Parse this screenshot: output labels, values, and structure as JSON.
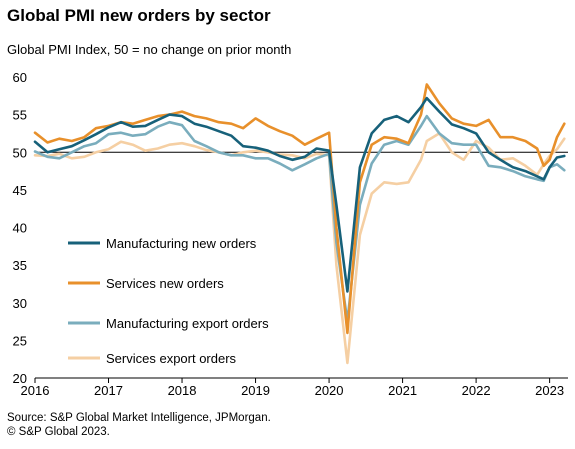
{
  "chart_data": {
    "type": "line",
    "title": "Global PMI new orders by sector",
    "subtitle": "Global PMI Index, 50 = no change on prior month",
    "source_line1": "Source: S&P Global Market Intelligence, JPMorgan.",
    "source_line2": "© S&P Global 2023.",
    "ylim": [
      20,
      60
    ],
    "yticks": [
      20,
      25,
      30,
      35,
      40,
      45,
      50,
      55,
      60
    ],
    "xlim": [
      2016,
      2023.25
    ],
    "xticks": [
      "2016",
      "2017",
      "2018",
      "2019",
      "2020",
      "2021",
      "2022",
      "2023"
    ],
    "reference_line": 50,
    "grid": false,
    "legend": "inside-left-bottom",
    "series": [
      {
        "name": "Manufacturing new orders",
        "color": "#17617a",
        "values": [
          [
            2016.0,
            51.4
          ],
          [
            2016.17,
            50.0
          ],
          [
            2016.33,
            50.4
          ],
          [
            2016.5,
            50.8
          ],
          [
            2016.67,
            51.6
          ],
          [
            2016.83,
            52.4
          ],
          [
            2017.0,
            53.3
          ],
          [
            2017.17,
            54.0
          ],
          [
            2017.33,
            53.4
          ],
          [
            2017.5,
            53.5
          ],
          [
            2017.67,
            54.3
          ],
          [
            2017.83,
            55.0
          ],
          [
            2018.0,
            54.8
          ],
          [
            2018.17,
            53.8
          ],
          [
            2018.33,
            53.4
          ],
          [
            2018.5,
            52.8
          ],
          [
            2018.67,
            52.2
          ],
          [
            2018.83,
            50.8
          ],
          [
            2019.0,
            50.6
          ],
          [
            2019.17,
            50.2
          ],
          [
            2019.33,
            49.5
          ],
          [
            2019.5,
            49.0
          ],
          [
            2019.67,
            49.4
          ],
          [
            2019.83,
            50.5
          ],
          [
            2020.0,
            50.2
          ],
          [
            2020.1,
            43.0
          ],
          [
            2020.25,
            31.5
          ],
          [
            2020.42,
            48.0
          ],
          [
            2020.58,
            52.5
          ],
          [
            2020.75,
            54.3
          ],
          [
            2020.92,
            54.8
          ],
          [
            2021.08,
            54.0
          ],
          [
            2021.25,
            56.0
          ],
          [
            2021.33,
            57.2
          ],
          [
            2021.5,
            55.4
          ],
          [
            2021.67,
            53.7
          ],
          [
            2021.83,
            53.2
          ],
          [
            2022.0,
            52.5
          ],
          [
            2022.17,
            50.0
          ],
          [
            2022.33,
            49.0
          ],
          [
            2022.5,
            48.0
          ],
          [
            2022.67,
            47.5
          ],
          [
            2022.83,
            46.8
          ],
          [
            2022.92,
            46.4
          ],
          [
            2023.0,
            48.0
          ],
          [
            2023.1,
            49.3
          ],
          [
            2023.2,
            49.5
          ]
        ]
      },
      {
        "name": "Services new orders",
        "color": "#e8902b",
        "values": [
          [
            2016.0,
            52.6
          ],
          [
            2016.17,
            51.3
          ],
          [
            2016.33,
            51.8
          ],
          [
            2016.5,
            51.5
          ],
          [
            2016.67,
            52.0
          ],
          [
            2016.83,
            53.2
          ],
          [
            2017.0,
            53.5
          ],
          [
            2017.17,
            54.0
          ],
          [
            2017.33,
            53.8
          ],
          [
            2017.5,
            54.3
          ],
          [
            2017.67,
            54.8
          ],
          [
            2017.83,
            55.0
          ],
          [
            2018.0,
            55.4
          ],
          [
            2018.17,
            54.8
          ],
          [
            2018.33,
            54.5
          ],
          [
            2018.5,
            54.0
          ],
          [
            2018.67,
            53.8
          ],
          [
            2018.83,
            53.2
          ],
          [
            2019.0,
            54.5
          ],
          [
            2019.17,
            53.5
          ],
          [
            2019.33,
            52.8
          ],
          [
            2019.5,
            52.2
          ],
          [
            2019.67,
            51.0
          ],
          [
            2019.83,
            51.8
          ],
          [
            2020.0,
            52.6
          ],
          [
            2020.1,
            40.0
          ],
          [
            2020.25,
            26.0
          ],
          [
            2020.42,
            46.0
          ],
          [
            2020.58,
            51.0
          ],
          [
            2020.75,
            52.0
          ],
          [
            2020.92,
            51.8
          ],
          [
            2021.08,
            51.2
          ],
          [
            2021.25,
            55.0
          ],
          [
            2021.33,
            59.0
          ],
          [
            2021.5,
            56.5
          ],
          [
            2021.67,
            54.5
          ],
          [
            2021.83,
            53.8
          ],
          [
            2022.0,
            53.5
          ],
          [
            2022.17,
            54.3
          ],
          [
            2022.33,
            52.0
          ],
          [
            2022.5,
            52.0
          ],
          [
            2022.67,
            51.5
          ],
          [
            2022.83,
            50.5
          ],
          [
            2022.92,
            48.2
          ],
          [
            2023.0,
            49.0
          ],
          [
            2023.1,
            52.0
          ],
          [
            2023.2,
            53.8
          ]
        ]
      },
      {
        "name": "Manufacturing export orders",
        "color": "#7aadbd",
        "values": [
          [
            2016.0,
            50.1
          ],
          [
            2016.17,
            49.4
          ],
          [
            2016.33,
            49.2
          ],
          [
            2016.5,
            50.0
          ],
          [
            2016.67,
            50.8
          ],
          [
            2016.83,
            51.2
          ],
          [
            2017.0,
            52.4
          ],
          [
            2017.17,
            52.6
          ],
          [
            2017.33,
            52.2
          ],
          [
            2017.5,
            52.4
          ],
          [
            2017.67,
            53.4
          ],
          [
            2017.83,
            54.0
          ],
          [
            2018.0,
            53.6
          ],
          [
            2018.17,
            51.5
          ],
          [
            2018.33,
            50.8
          ],
          [
            2018.5,
            50.0
          ],
          [
            2018.67,
            49.6
          ],
          [
            2018.83,
            49.6
          ],
          [
            2019.0,
            49.2
          ],
          [
            2019.17,
            49.2
          ],
          [
            2019.33,
            48.5
          ],
          [
            2019.5,
            47.6
          ],
          [
            2019.67,
            48.4
          ],
          [
            2019.83,
            49.2
          ],
          [
            2020.0,
            49.8
          ],
          [
            2020.1,
            38.0
          ],
          [
            2020.25,
            27.5
          ],
          [
            2020.42,
            43.0
          ],
          [
            2020.58,
            48.5
          ],
          [
            2020.75,
            51.0
          ],
          [
            2020.92,
            51.5
          ],
          [
            2021.08,
            51.0
          ],
          [
            2021.25,
            53.5
          ],
          [
            2021.33,
            54.8
          ],
          [
            2021.5,
            52.5
          ],
          [
            2021.67,
            51.2
          ],
          [
            2021.83,
            51.0
          ],
          [
            2022.0,
            51.0
          ],
          [
            2022.17,
            48.2
          ],
          [
            2022.33,
            48.0
          ],
          [
            2022.5,
            47.5
          ],
          [
            2022.67,
            46.8
          ],
          [
            2022.83,
            46.4
          ],
          [
            2022.92,
            46.2
          ],
          [
            2023.0,
            48.0
          ],
          [
            2023.1,
            48.4
          ],
          [
            2023.2,
            47.6
          ]
        ]
      },
      {
        "name": "Services export orders",
        "color": "#f5cfa3",
        "values": [
          [
            2016.0,
            49.6
          ],
          [
            2016.17,
            49.5
          ],
          [
            2016.33,
            49.8
          ],
          [
            2016.5,
            49.2
          ],
          [
            2016.67,
            49.4
          ],
          [
            2016.83,
            50.0
          ],
          [
            2017.0,
            50.4
          ],
          [
            2017.17,
            51.4
          ],
          [
            2017.33,
            51.0
          ],
          [
            2017.5,
            50.2
          ],
          [
            2017.67,
            50.5
          ],
          [
            2017.83,
            51.0
          ],
          [
            2018.0,
            51.2
          ],
          [
            2018.17,
            50.8
          ],
          [
            2018.33,
            50.3
          ],
          [
            2018.5,
            50.0
          ],
          [
            2018.67,
            49.6
          ],
          [
            2018.83,
            50.0
          ],
          [
            2019.0,
            50.2
          ],
          [
            2019.17,
            50.0
          ],
          [
            2019.33,
            49.7
          ],
          [
            2019.5,
            49.6
          ],
          [
            2019.67,
            49.2
          ],
          [
            2019.83,
            49.8
          ],
          [
            2020.0,
            49.6
          ],
          [
            2020.1,
            35.0
          ],
          [
            2020.25,
            22.0
          ],
          [
            2020.42,
            39.0
          ],
          [
            2020.58,
            44.5
          ],
          [
            2020.75,
            46.0
          ],
          [
            2020.92,
            45.8
          ],
          [
            2021.08,
            46.0
          ],
          [
            2021.25,
            49.0
          ],
          [
            2021.33,
            51.5
          ],
          [
            2021.5,
            52.5
          ],
          [
            2021.67,
            50.0
          ],
          [
            2021.83,
            49.0
          ],
          [
            2022.0,
            51.5
          ],
          [
            2022.17,
            50.6
          ],
          [
            2022.33,
            49.0
          ],
          [
            2022.5,
            49.2
          ],
          [
            2022.67,
            48.2
          ],
          [
            2022.83,
            47.0
          ],
          [
            2022.92,
            48.4
          ],
          [
            2023.0,
            49.5
          ],
          [
            2023.1,
            50.4
          ],
          [
            2023.2,
            51.8
          ]
        ]
      }
    ]
  }
}
